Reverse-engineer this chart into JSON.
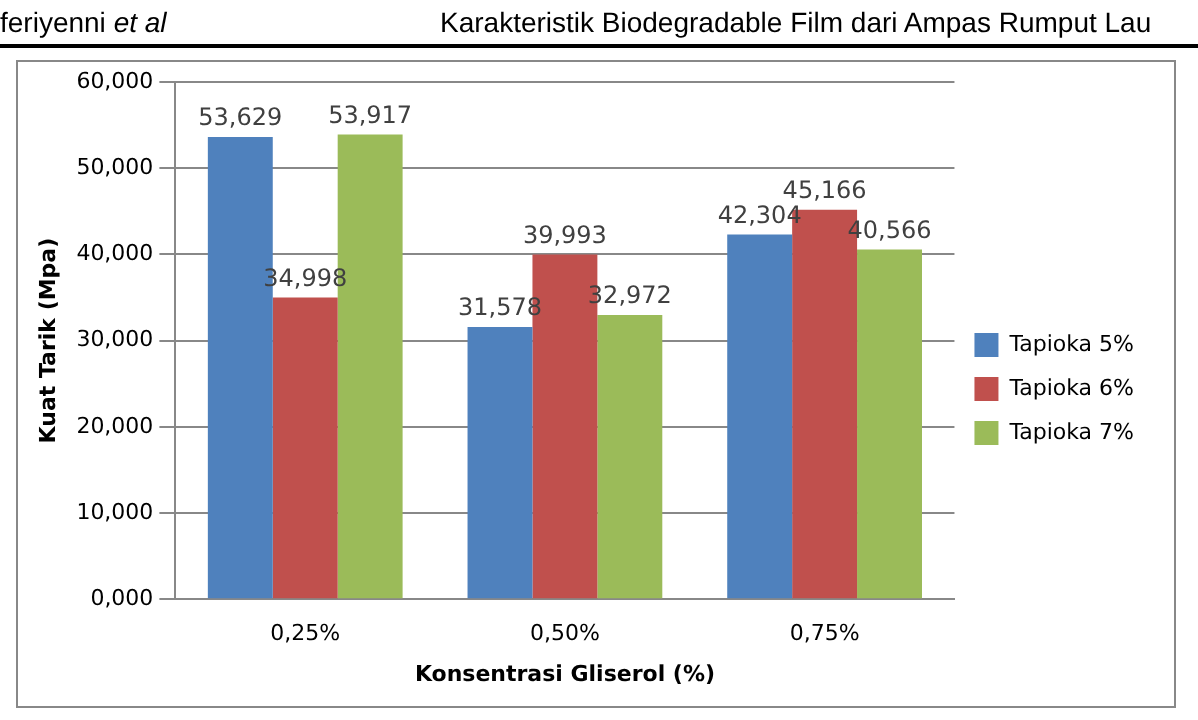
{
  "chart_data": {
    "type": "bar",
    "xlabel": "Konsentrasi Gliserol (%)",
    "ylabel": "Kuat Tarik (Mpa)",
    "annotations": [
      "feriyenni et al",
      "Karakteristik Biodegradable Film dari Ampas Rumput Lau"
    ],
    "categories": [
      "0,25%",
      "0,50%",
      "0,75%"
    ],
    "series": [
      {
        "name": "Tapioka 5%",
        "color": "#4f81bd",
        "values": [
          53.629,
          31.578,
          42.304
        ],
        "value_labels": [
          "53,629",
          "31,578",
          "42,304"
        ]
      },
      {
        "name": "Tapioka 6%",
        "color": "#c0504d",
        "values": [
          34.998,
          39.993,
          45.166
        ],
        "value_labels": [
          "34,998",
          "39,993",
          "45,166"
        ]
      },
      {
        "name": "Tapioka 7%",
        "color": "#9bbb59",
        "values": [
          53.917,
          32.972,
          40.566
        ],
        "value_labels": [
          "53,917",
          "32,972",
          "40,566"
        ]
      }
    ],
    "ylim": [
      0,
      60
    ],
    "yticks": [
      {
        "value": 0,
        "label": "0,000"
      },
      {
        "value": 10,
        "label": "10,000"
      },
      {
        "value": 20,
        "label": "20,000"
      },
      {
        "value": 30,
        "label": "30,000"
      },
      {
        "value": 40,
        "label": "40,000"
      },
      {
        "value": 50,
        "label": "50,000"
      },
      {
        "value": 60,
        "label": "60,000"
      }
    ],
    "grid": "y",
    "legend": "right"
  }
}
